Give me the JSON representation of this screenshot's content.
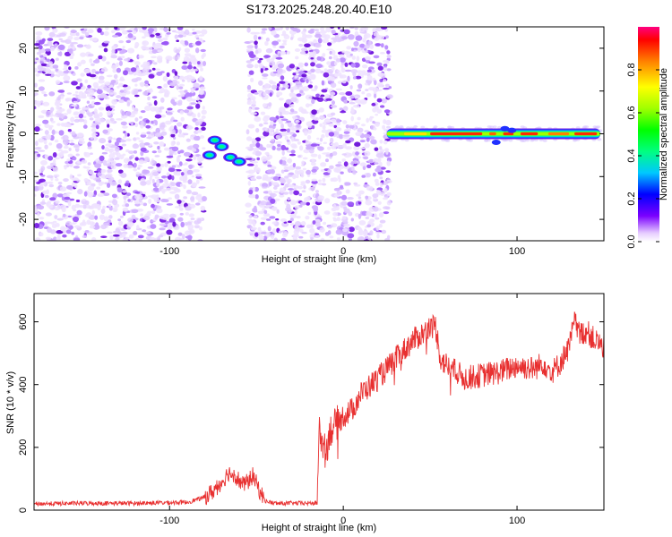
{
  "figure_title": "S173.2025.248.20.40.E10",
  "colors": {
    "snr_line": "#e83030",
    "axis": "#000000",
    "scatter": "#7a2be0"
  },
  "chart_data": [
    {
      "type": "heatmap",
      "name": "spectrogram",
      "title": "S173.2025.248.20.40.E10",
      "xlabel": "Height of straight line (km)",
      "ylabel": "Frequency (Hz)",
      "xlim": [
        -178,
        150
      ],
      "ylim": [
        -25,
        25
      ],
      "x_ticks": [
        -100,
        0,
        100
      ],
      "x_tick_labels": [
        "-100",
        "0",
        "100"
      ],
      "y_ticks": [
        -20,
        -10,
        0,
        10,
        20
      ],
      "y_tick_labels": [
        "-20",
        "-10",
        "0",
        "10",
        "20"
      ],
      "noise_regions": [
        [
          -178,
          -80
        ],
        [
          -55,
          27
        ]
      ],
      "signal_band": {
        "x_start": 25,
        "x_end": 148,
        "freq": 0
      },
      "signal_blobs": [
        {
          "x": -74,
          "y": -1.5
        },
        {
          "x": -70,
          "y": -3
        },
        {
          "x": -77,
          "y": -5
        },
        {
          "x": -65,
          "y": -5.5
        },
        {
          "x": -60,
          "y": -6.5
        }
      ],
      "colorbar": {
        "label": "Normalized spectral amplitude",
        "range": [
          0,
          1
        ],
        "ticks": [
          0.0,
          0.2,
          0.4,
          0.6,
          0.8
        ],
        "tick_labels": [
          "0.0",
          "0.2",
          "0.4",
          "0.6",
          "0.8"
        ]
      }
    },
    {
      "type": "line",
      "name": "snr",
      "xlabel": "Height of straight line (km)",
      "ylabel": "SNR (10 * v/v)",
      "xlim": [
        -178,
        150
      ],
      "ylim": [
        0,
        690
      ],
      "x_ticks": [
        -100,
        0,
        100
      ],
      "x_tick_labels": [
        "-100",
        "0",
        "100"
      ],
      "y_ticks": [
        0,
        200,
        400,
        600
      ],
      "y_tick_labels": [
        "0",
        "200",
        "400",
        "600"
      ],
      "x": [
        -178,
        -150,
        -120,
        -90,
        -80,
        -75,
        -70,
        -66,
        -62,
        -58,
        -55,
        -52,
        -48,
        -45,
        -40,
        -30,
        -20,
        -15,
        -14,
        -13,
        -10,
        -8,
        -5,
        0,
        5,
        10,
        20,
        30,
        40,
        50,
        53,
        55,
        56,
        60,
        70,
        80,
        90,
        100,
        110,
        115,
        120,
        125,
        130,
        133,
        136,
        140,
        145,
        150
      ],
      "y": [
        20,
        22,
        22,
        25,
        40,
        60,
        90,
        120,
        110,
        80,
        90,
        110,
        60,
        30,
        22,
        22,
        22,
        22,
        260,
        230,
        180,
        250,
        270,
        300,
        320,
        370,
        420,
        480,
        540,
        580,
        590,
        520,
        480,
        460,
        420,
        430,
        440,
        460,
        450,
        470,
        440,
        470,
        520,
        600,
        560,
        570,
        540,
        520
      ]
    }
  ]
}
